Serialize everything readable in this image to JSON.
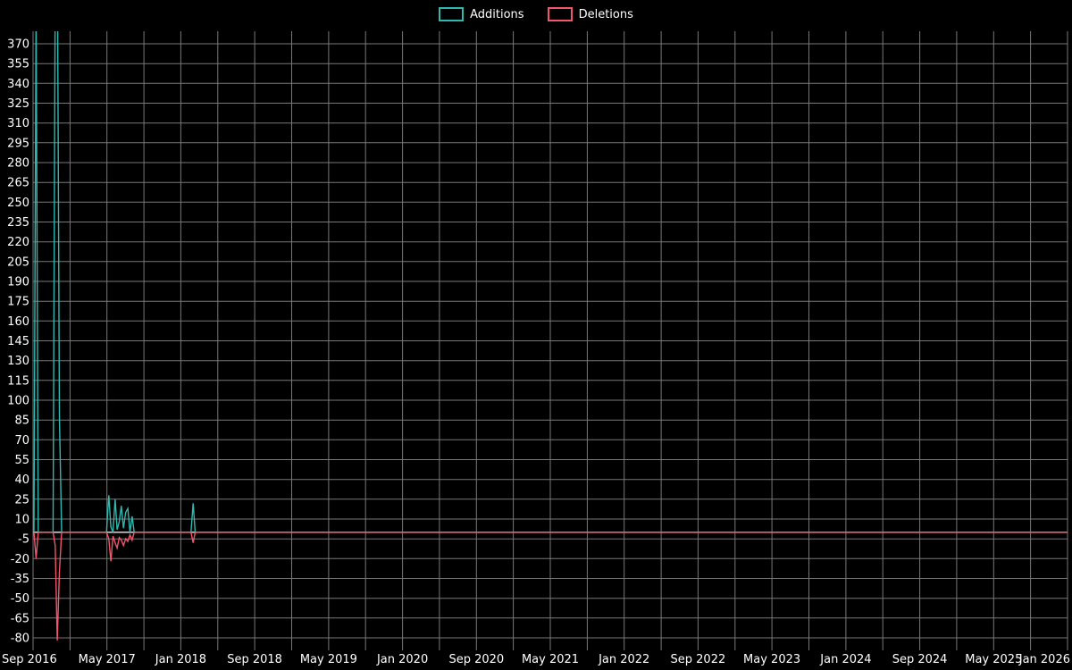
{
  "legend": {
    "additions": "Additions",
    "deletions": "Deletions"
  },
  "colors": {
    "background": "#000000",
    "gridline": "#787878",
    "zero_line": "#c8c8c8",
    "axis_text": "#ffffff",
    "additions": "#2fb8b0",
    "deletions": "#f2566d"
  },
  "chart_data": {
    "type": "line",
    "title": "",
    "xlabel": "",
    "ylabel": "",
    "legend_position": "top-center",
    "grid": true,
    "interval": "weekly",
    "x_axis": {
      "start": "2016-09",
      "end": "2026-01",
      "gridline_every_months": 4,
      "label_every_months": 8,
      "tick_labels": [
        "Sep 2016",
        "May 2017",
        "Jan 2018",
        "Sep 2018",
        "May 2019",
        "Jan 2020",
        "Sep 2020",
        "May 2021",
        "Jan 2022",
        "Sep 2022",
        "May 2023",
        "Jan 2024",
        "Sep 2024",
        "May 2025",
        "Jan 2026"
      ]
    },
    "y_axis": {
      "min": -80,
      "max": 370,
      "step": 15,
      "plot_min": -90,
      "plot_max": 380,
      "tick_labels": [
        "370",
        "355",
        "340",
        "325",
        "310",
        "295",
        "280",
        "265",
        "250",
        "235",
        "220",
        "205",
        "190",
        "175",
        "160",
        "145",
        "130",
        "115",
        "100",
        "85",
        "70",
        "55",
        "40",
        "25",
        "10",
        "-5",
        "-20",
        "-35",
        "-50",
        "-65",
        "-80"
      ]
    },
    "baseline": 0,
    "note": "Values are 0 for all weeks between listed points; tallest additions spikes are clipped at the top of the plot",
    "series": [
      {
        "name": "Additions",
        "color": "#2fb8b0",
        "points": [
          [
            "2016-09-04",
            0
          ],
          [
            "2016-09-11",
            400
          ],
          [
            "2016-09-18",
            0
          ],
          [
            "2016-11-06",
            0
          ],
          [
            "2016-11-13",
            410
          ],
          [
            "2016-11-20",
            455
          ],
          [
            "2016-11-27",
            88
          ],
          [
            "2016-12-04",
            0
          ],
          [
            "2017-04-30",
            0
          ],
          [
            "2017-05-07",
            28
          ],
          [
            "2017-05-14",
            4
          ],
          [
            "2017-05-21",
            0
          ],
          [
            "2017-05-28",
            25
          ],
          [
            "2017-06-04",
            2
          ],
          [
            "2017-06-11",
            8
          ],
          [
            "2017-06-18",
            20
          ],
          [
            "2017-06-25",
            3
          ],
          [
            "2017-07-02",
            15
          ],
          [
            "2017-07-09",
            18
          ],
          [
            "2017-07-16",
            0
          ],
          [
            "2017-07-23",
            12
          ],
          [
            "2017-07-30",
            0
          ],
          [
            "2018-02-04",
            0
          ],
          [
            "2018-02-11",
            22
          ],
          [
            "2018-02-18",
            0
          ],
          [
            "2026-01-01",
            0
          ]
        ]
      },
      {
        "name": "Deletions",
        "color": "#f2566d",
        "points": [
          [
            "2016-09-04",
            0
          ],
          [
            "2016-09-11",
            -20
          ],
          [
            "2016-09-18",
            0
          ],
          [
            "2016-11-06",
            0
          ],
          [
            "2016-11-13",
            -10
          ],
          [
            "2016-11-20",
            -82
          ],
          [
            "2016-11-27",
            -30
          ],
          [
            "2016-12-04",
            0
          ],
          [
            "2017-04-30",
            0
          ],
          [
            "2017-05-07",
            -5
          ],
          [
            "2017-05-14",
            -22
          ],
          [
            "2017-05-21",
            -3
          ],
          [
            "2017-05-28",
            -8
          ],
          [
            "2017-06-04",
            -12
          ],
          [
            "2017-06-11",
            -4
          ],
          [
            "2017-06-18",
            -6
          ],
          [
            "2017-06-25",
            -10
          ],
          [
            "2017-07-02",
            -5
          ],
          [
            "2017-07-09",
            -7
          ],
          [
            "2017-07-16",
            -2
          ],
          [
            "2017-07-23",
            -6
          ],
          [
            "2017-07-30",
            0
          ],
          [
            "2018-02-04",
            0
          ],
          [
            "2018-02-11",
            -8
          ],
          [
            "2018-02-18",
            0
          ],
          [
            "2026-01-01",
            0
          ]
        ]
      }
    ]
  }
}
